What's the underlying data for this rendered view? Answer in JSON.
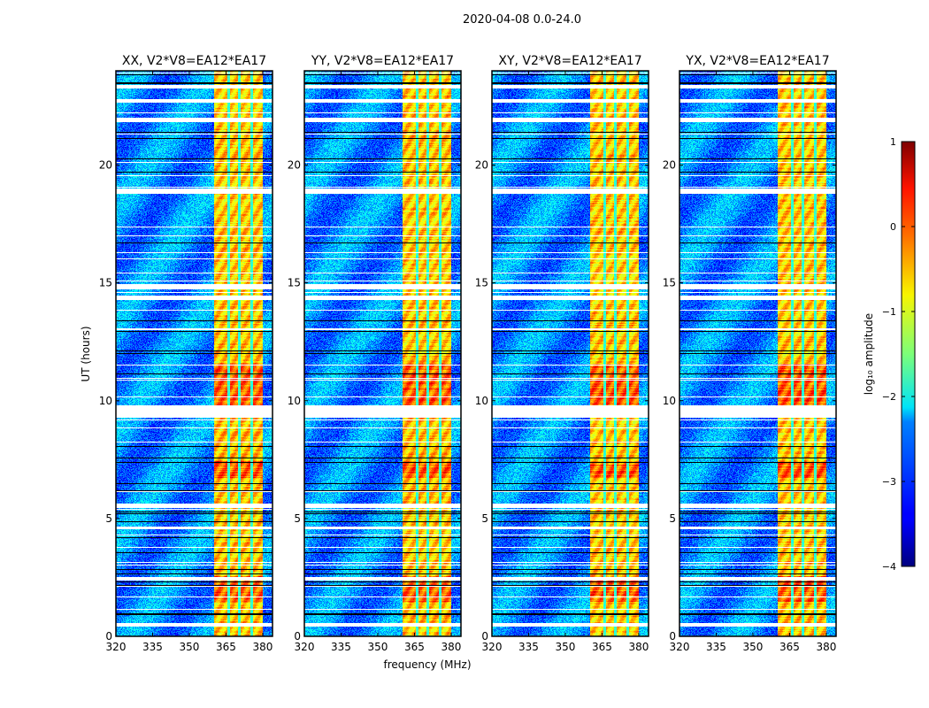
{
  "chart_data": {
    "type": "heatmap",
    "suptitle": "2020-04-08 0.0-24.0",
    "xlabel": "frequency (MHz)",
    "ylabel": "UT (hours)",
    "xlim": [
      320,
      384
    ],
    "ylim": [
      0,
      24
    ],
    "xticks": [
      320,
      335,
      350,
      365,
      380
    ],
    "yticks": [
      0,
      5,
      10,
      15,
      20
    ],
    "panels": [
      {
        "title": "XX, V2*V8=EA12*EA17"
      },
      {
        "title": "YY, V2*V8=EA12*EA17"
      },
      {
        "title": "XY, V2*V8=EA12*EA17"
      },
      {
        "title": "YX, V2*V8=EA12*EA17"
      }
    ],
    "bright_band_mhz": [
      360,
      380
    ],
    "band_gaps_mhz": [
      365.8,
      370.2,
      375.2
    ],
    "background_level_log10": -2.7,
    "band_level_log10": -0.6,
    "flagged_white_hours": [
      [
        0.45,
        0.55
      ],
      [
        2.4,
        2.5
      ],
      [
        4.6,
        4.65
      ],
      [
        5.5,
        5.65
      ],
      [
        9.3,
        9.8
      ],
      [
        14.3,
        14.45
      ],
      [
        14.75,
        14.95
      ],
      [
        18.8,
        19.0
      ],
      [
        21.9,
        22.0
      ],
      [
        22.7,
        22.8
      ],
      [
        23.3,
        23.4
      ]
    ],
    "colorbar": {
      "label": "log₁₀ amplitude",
      "range": [
        -4,
        1
      ],
      "ticks": [
        "1",
        "0",
        "−1",
        "−2",
        "−3",
        "−4"
      ],
      "tick_values": [
        1,
        0,
        -1,
        -2,
        -3,
        -4
      ],
      "colormap": "jet"
    }
  }
}
